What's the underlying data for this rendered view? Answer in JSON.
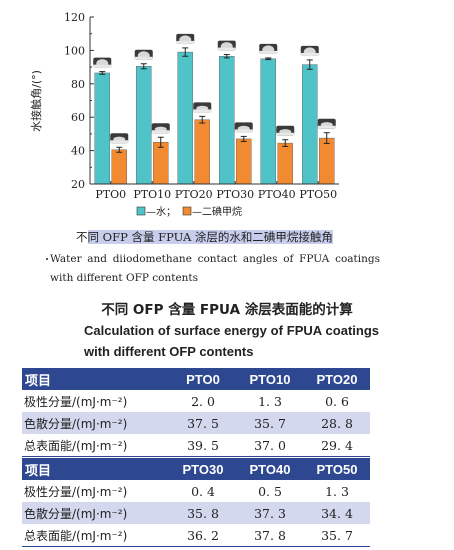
{
  "chart_data": {
    "type": "bar",
    "categories": [
      "PTO0",
      "PTO10",
      "PTO20",
      "PTO30",
      "PTO40",
      "PTO50"
    ],
    "series": [
      {
        "name": "水",
        "color": "#4fc3c8",
        "values": [
          86.5,
          90.5,
          99.0,
          96.5,
          95.0,
          91.5
        ],
        "errors": [
          0.8,
          1.5,
          2.5,
          1.0,
          0.5,
          2.8
        ]
      },
      {
        "name": "二碘甲烷",
        "color": "#f28a31",
        "values": [
          40.5,
          45.0,
          58.5,
          47.0,
          44.5,
          47.5
        ],
        "errors": [
          1.5,
          3.0,
          2.0,
          1.5,
          2.0,
          3.2
        ]
      }
    ],
    "ylabel": "水接触角/(°)",
    "ylim": [
      20,
      120
    ],
    "yticks": [
      20,
      40,
      60,
      80,
      100,
      120
    ],
    "legend": {
      "water": "—水；",
      "diiodo": "—二碘甲烷",
      "placement": "bottom"
    }
  },
  "caption": {
    "zh_prefix": "不",
    "zh_highlight": "同 OFP 含量 FPUA 涂层的水和二碘甲烷接触角",
    "en": "Water and diiodomethane contact angles of FPUA coatings with different OFP contents"
  },
  "table": {
    "title_zh": "不同 OFP 含量 FPUA 涂层表面能的计算",
    "title_en": "Calculation of surface energy of FPUA coatings with different OFP contents",
    "blocks": [
      {
        "header": [
          "项目",
          "PTO0",
          "PTO10",
          "PTO20"
        ],
        "rows": [
          [
            "极性分量/(mJ·m⁻²)",
            "2. 0",
            "1. 3",
            "0. 6"
          ],
          [
            "色散分量/(mJ·m⁻²)",
            "37. 5",
            "35. 7",
            "28. 8"
          ],
          [
            "总表面能/(mJ·m⁻²)",
            "39. 5",
            "37. 0",
            "29. 4"
          ]
        ]
      },
      {
        "header": [
          "项目",
          "PTO30",
          "PTO40",
          "PTO50"
        ],
        "rows": [
          [
            "极性分量/(mJ·m⁻²)",
            "0. 4",
            "0. 5",
            "1. 3"
          ],
          [
            "色散分量/(mJ·m⁻²)",
            "35. 8",
            "37. 3",
            "34. 4"
          ],
          [
            "总表面能/(mJ·m⁻²)",
            "36. 2",
            "37. 8",
            "35. 7"
          ]
        ]
      }
    ]
  }
}
